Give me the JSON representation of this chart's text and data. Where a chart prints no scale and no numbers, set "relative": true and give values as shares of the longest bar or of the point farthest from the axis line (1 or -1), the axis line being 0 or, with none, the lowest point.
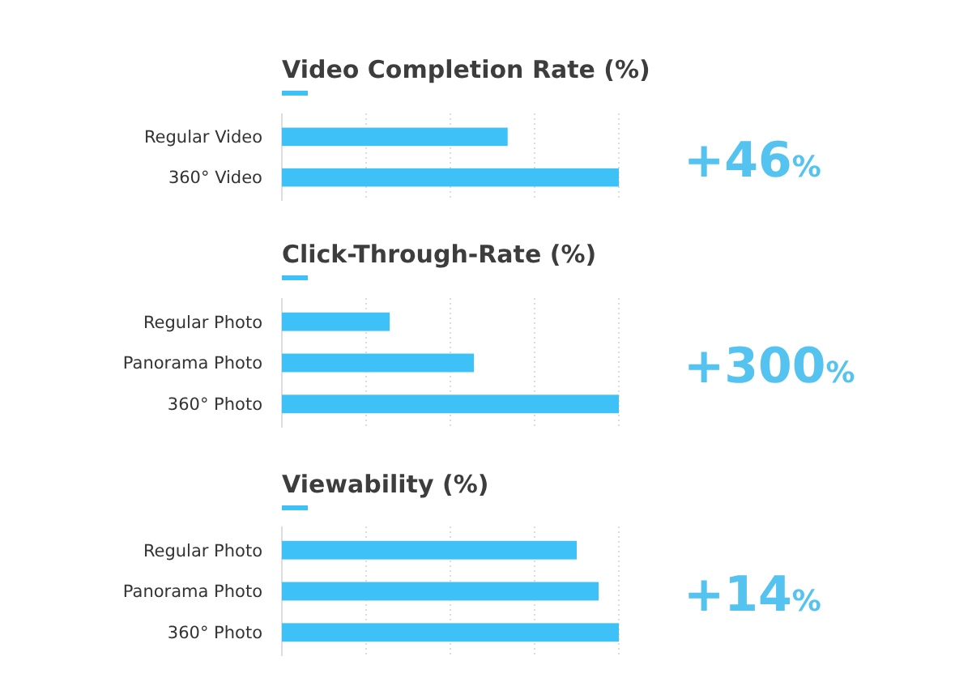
{
  "chart_data": [
    {
      "type": "bar",
      "orientation": "horizontal",
      "relative": true,
      "title": "Video Completion Rate (%)",
      "categories": [
        "Regular Video",
        "360° Video"
      ],
      "values": [
        0.67,
        1
      ],
      "color": "#3ec1f7",
      "grid": "x",
      "annotations": [
        "+46%"
      ]
    },
    {
      "type": "bar",
      "orientation": "horizontal",
      "relative": true,
      "title": "Click-Through-Rate (%)",
      "categories": [
        "Regular Photo",
        "Panorama Photo",
        "360° Photo"
      ],
      "values": [
        0.32,
        0.57,
        1
      ],
      "color": "#3ec1f7",
      "grid": "x",
      "annotations": [
        "+300%"
      ]
    },
    {
      "type": "bar",
      "orientation": "horizontal",
      "relative": true,
      "title": "Viewability (%)",
      "categories": [
        "Regular Photo",
        "Panorama Photo",
        "360° Photo"
      ],
      "values": [
        0.875,
        0.94,
        1
      ],
      "color": "#3ec1f7",
      "grid": "x",
      "annotations": [
        "+14%"
      ]
    }
  ]
}
